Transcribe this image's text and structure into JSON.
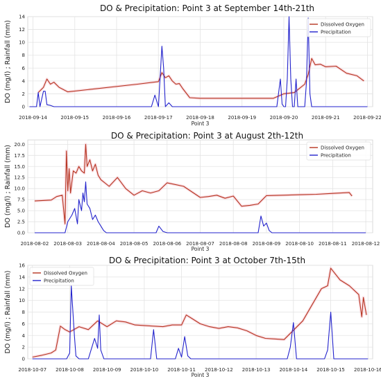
{
  "chart_data": [
    {
      "type": "line",
      "title": "DO & Precipitation: Point 3 at September 14th-21th",
      "xlabel": "Point 3",
      "ylabel": "DO (mg/l) ; Rainfall (mm)",
      "xlim": [
        "2018-09-13 21:00",
        "2018-09-22 03:00"
      ],
      "ylim": [
        0,
        14
      ],
      "yticks": [
        0,
        2,
        4,
        6,
        8,
        10,
        12,
        14
      ],
      "ytick_labels": [
        "0",
        "2",
        "4",
        "6",
        "8",
        "10",
        "12",
        "14"
      ],
      "xticks": [
        "2018-09-14",
        "2018-09-15",
        "2018-09-16",
        "2018-09-17",
        "2018-09-18",
        "2018-09-19",
        "2018-09-20",
        "2018-09-21",
        "2018-09-22"
      ],
      "grid": true,
      "legend_position": "top-right",
      "series": [
        {
          "name": "Dissolved Oxygen",
          "color": "#b5321e",
          "x": [
            "2018-09-14 03:00",
            "2018-09-14 06:00",
            "2018-09-14 08:00",
            "2018-09-14 10:00",
            "2018-09-14 12:00",
            "2018-09-14 15:00",
            "2018-09-14 20:00",
            "2018-09-16 12:00",
            "2018-09-17 00:00",
            "2018-09-17 02:00",
            "2018-09-17 04:00",
            "2018-09-17 06:00",
            "2018-09-17 08:00",
            "2018-09-17 10:00",
            "2018-09-17 12:00",
            "2018-09-17 14:00",
            "2018-09-17 18:00",
            "2018-09-18 00:00",
            "2018-09-19 06:00",
            "2018-09-19 18:00",
            "2018-09-20 00:00",
            "2018-09-20 06:00",
            "2018-09-20 12:00",
            "2018-09-20 14:00",
            "2018-09-20 16:00",
            "2018-09-20 18:00",
            "2018-09-20 21:00",
            "2018-09-21 00:00",
            "2018-09-21 06:00",
            "2018-09-21 12:00",
            "2018-09-21 18:00",
            "2018-09-21 22:00"
          ],
          "values": [
            2.2,
            3.0,
            4.3,
            3.5,
            3.8,
            3.0,
            2.3,
            3.5,
            3.9,
            5.3,
            4.5,
            4.8,
            4.0,
            3.5,
            3.6,
            2.8,
            1.4,
            1.3,
            1.3,
            1.3,
            2.0,
            2.2,
            3.5,
            5.0,
            7.5,
            6.5,
            6.6,
            6.2,
            6.3,
            5.2,
            4.8,
            4.0
          ]
        },
        {
          "name": "Precipitation",
          "color": "#2222cc",
          "x": [
            "2018-09-13 22:00",
            "2018-09-14 02:00",
            "2018-09-14 03:00",
            "2018-09-14 04:00",
            "2018-09-14 06:00",
            "2018-09-14 07:00",
            "2018-09-14 08:00",
            "2018-09-14 10:00",
            "2018-09-14 12:00",
            "2018-09-16 20:00",
            "2018-09-16 22:00",
            "2018-09-17 00:00",
            "2018-09-17 02:00",
            "2018-09-17 03:00",
            "2018-09-17 04:00",
            "2018-09-17 06:00",
            "2018-09-17 08:00",
            "2018-09-19 20:00",
            "2018-09-19 22:00",
            "2018-09-19 23:00",
            "2018-09-20 00:00",
            "2018-09-20 01:00",
            "2018-09-20 02:00",
            "2018-09-20 03:00",
            "2018-09-20 04:00",
            "2018-09-20 05:00",
            "2018-09-20 06:00",
            "2018-09-20 07:00",
            "2018-09-20 08:00",
            "2018-09-20 09:00",
            "2018-09-20 10:00",
            "2018-09-20 11:00",
            "2018-09-20 12:00",
            "2018-09-20 13:00",
            "2018-09-20 14:00",
            "2018-09-20 15:00",
            "2018-09-20 16:00",
            "2018-09-20 17:00",
            "2018-09-20 18:00",
            "2018-09-20 20:00",
            "2018-09-22 00:00"
          ],
          "values": [
            0,
            0,
            2.2,
            0,
            2.4,
            2.4,
            0.3,
            0.2,
            0,
            0,
            1.8,
            0,
            9.4,
            6.0,
            0,
            0.6,
            0,
            0,
            4.3,
            0.4,
            0,
            0,
            4.4,
            14.0,
            4.3,
            0,
            0,
            4.3,
            0,
            0,
            0,
            0,
            0,
            3.8,
            13.8,
            2.0,
            0,
            0,
            0,
            0,
            0
          ]
        }
      ]
    },
    {
      "type": "line",
      "title": "DO & Precipitation: Point 3  at August 2th-12th",
      "xlabel": "Point 3",
      "ylabel": "DO (mg/l) ; Rainfall (mm)",
      "xlim": [
        "2018-08-01 19:00",
        "2018-08-12 05:00"
      ],
      "ylim": [
        0,
        21
      ],
      "yticks": [
        0,
        2.5,
        5,
        7.5,
        10,
        12.5,
        15,
        17.5,
        20
      ],
      "ytick_labels": [
        "0.0",
        "2.5",
        "5.0",
        "7.5",
        "10.0",
        "12.5",
        "15.0",
        "17.5",
        "20.0"
      ],
      "xticks": [
        "2018-08-02",
        "2018-08-03",
        "2018-08-04",
        "2018-08-05",
        "2018-08-06",
        "2018-08-07",
        "2018-08-08",
        "2018-08-09",
        "2018-08-10",
        "2018-08-11",
        "2018-08-12"
      ],
      "grid": true,
      "legend_position": "top-right",
      "series": [
        {
          "name": "Dissolved Oxygen",
          "color": "#b5321e",
          "x": [
            "2018-08-02 00:00",
            "2018-08-02 06:00",
            "2018-08-02 12:00",
            "2018-08-02 16:00",
            "2018-08-02 20:00",
            "2018-08-02 22:00",
            "2018-08-02 23:00",
            "2018-08-03 00:00",
            "2018-08-03 01:00",
            "2018-08-03 02:00",
            "2018-08-03 04:00",
            "2018-08-03 06:00",
            "2018-08-03 08:00",
            "2018-08-03 10:00",
            "2018-08-03 12:00",
            "2018-08-03 13:00",
            "2018-08-03 14:00",
            "2018-08-03 16:00",
            "2018-08-03 18:00",
            "2018-08-03 20:00",
            "2018-08-03 22:00",
            "2018-08-04 00:00",
            "2018-08-04 06:00",
            "2018-08-04 12:00",
            "2018-08-04 18:00",
            "2018-08-05 00:00",
            "2018-08-05 06:00",
            "2018-08-05 12:00",
            "2018-08-05 18:00",
            "2018-08-06 00:00",
            "2018-08-06 12:00",
            "2018-08-07 00:00",
            "2018-08-07 06:00",
            "2018-08-07 12:00",
            "2018-08-07 18:00",
            "2018-08-08 00:00",
            "2018-08-08 06:00",
            "2018-08-08 12:00",
            "2018-08-08 18:00",
            "2018-08-09 00:00",
            "2018-08-09 12:00",
            "2018-08-10 00:00",
            "2018-08-10 12:00",
            "2018-08-11 00:00",
            "2018-08-11 12:00",
            "2018-08-11 14:00"
          ],
          "values": [
            7.2,
            7.3,
            7.4,
            8.2,
            8.5,
            2.0,
            18.5,
            9.5,
            14.5,
            9.0,
            14.0,
            13.5,
            15.0,
            14.0,
            13.5,
            20.0,
            15.0,
            16.5,
            14.0,
            15.5,
            13.0,
            12.0,
            10.5,
            12.5,
            10.0,
            8.5,
            9.5,
            9.0,
            9.5,
            11.3,
            10.5,
            8.0,
            8.2,
            8.5,
            7.8,
            8.3,
            6.0,
            6.2,
            6.5,
            8.4,
            8.5,
            8.6,
            8.7,
            8.9,
            9.1,
            8.3
          ]
        },
        {
          "name": "Precipitation",
          "color": "#2222cc",
          "x": [
            "2018-08-02 00:00",
            "2018-08-02 22:00",
            "2018-08-03 00:00",
            "2018-08-03 03:00",
            "2018-08-03 05:00",
            "2018-08-03 07:00",
            "2018-08-03 08:00",
            "2018-08-03 10:00",
            "2018-08-03 11:00",
            "2018-08-03 12:00",
            "2018-08-03 13:00",
            "2018-08-03 14:00",
            "2018-08-03 16:00",
            "2018-08-03 18:00",
            "2018-08-03 20:00",
            "2018-08-03 22:00",
            "2018-08-04 00:00",
            "2018-08-04 02:00",
            "2018-08-04 04:00",
            "2018-08-05 16:00",
            "2018-08-05 18:00",
            "2018-08-05 21:00",
            "2018-08-06 00:00",
            "2018-08-08 18:00",
            "2018-08-08 20:00",
            "2018-08-08 22:00",
            "2018-08-09 00:00",
            "2018-08-09 02:00",
            "2018-08-09 04:00",
            "2018-08-12 00:00"
          ],
          "values": [
            0,
            0,
            2.5,
            4.0,
            5.5,
            2.0,
            7.5,
            5.0,
            9.0,
            7.0,
            11.5,
            6.5,
            5.5,
            3.0,
            4.0,
            2.5,
            1.5,
            0.5,
            0,
            0,
            1.5,
            0.3,
            0,
            0,
            3.8,
            1.5,
            2.2,
            0.5,
            0,
            0
          ]
        }
      ]
    },
    {
      "type": "line",
      "title": "DO & Precipitation: Point 3  at October 7th-15th",
      "xlabel": "Point 3",
      "ylabel": "DO (mg/l) ; Rainfall (mm)",
      "xlim": [
        "2018-10-06 21:00",
        "2018-10-16 03:00"
      ],
      "ylim": [
        0,
        16
      ],
      "yticks": [
        0,
        2,
        4,
        6,
        8,
        10,
        12,
        14,
        16
      ],
      "ytick_labels": [
        "0",
        "2",
        "4",
        "6",
        "8",
        "10",
        "12",
        "14",
        "16"
      ],
      "xticks": [
        "2018-10-07",
        "2018-10-08",
        "2018-10-09",
        "2018-10-10",
        "2018-10-11",
        "2018-10-12",
        "2018-10-13",
        "2018-10-14",
        "2018-10-15",
        "2018-10-16"
      ],
      "grid": true,
      "legend_position": "top-left",
      "series": [
        {
          "name": "Dissolved Oxygen",
          "color": "#b5321e",
          "x": [
            "2018-10-07 00:00",
            "2018-10-07 06:00",
            "2018-10-07 12:00",
            "2018-10-07 15:00",
            "2018-10-07 18:00",
            "2018-10-07 21:00",
            "2018-10-08 00:00",
            "2018-10-08 06:00",
            "2018-10-08 12:00",
            "2018-10-08 18:00",
            "2018-10-09 00:00",
            "2018-10-09 06:00",
            "2018-10-09 12:00",
            "2018-10-09 18:00",
            "2018-10-10 00:00",
            "2018-10-10 06:00",
            "2018-10-10 12:00",
            "2018-10-10 18:00",
            "2018-10-11 00:00",
            "2018-10-11 03:00",
            "2018-10-11 06:00",
            "2018-10-11 12:00",
            "2018-10-11 18:00",
            "2018-10-12 00:00",
            "2018-10-12 06:00",
            "2018-10-12 12:00",
            "2018-10-12 18:00",
            "2018-10-13 00:00",
            "2018-10-13 06:00",
            "2018-10-13 12:00",
            "2018-10-13 18:00",
            "2018-10-14 06:00",
            "2018-10-14 18:00",
            "2018-10-14 22:00",
            "2018-10-15 00:00",
            "2018-10-15 06:00",
            "2018-10-15 12:00",
            "2018-10-15 18:00",
            "2018-10-15 20:00",
            "2018-10-15 21:00",
            "2018-10-15 23:00"
          ],
          "values": [
            0.3,
            0.6,
            1.0,
            1.5,
            5.6,
            5.0,
            4.6,
            5.5,
            5.0,
            6.5,
            5.5,
            6.5,
            6.3,
            5.8,
            5.7,
            5.6,
            5.5,
            5.8,
            5.8,
            7.5,
            7.0,
            6.0,
            5.5,
            5.2,
            5.5,
            5.3,
            4.8,
            4.0,
            3.5,
            3.4,
            3.3,
            6.5,
            12.0,
            12.5,
            15.5,
            13.5,
            12.5,
            11.0,
            7.2,
            10.5,
            7.5
          ]
        },
        {
          "name": "Precipitation",
          "color": "#2222cc",
          "x": [
            "2018-10-07 00:00",
            "2018-10-07 22:00",
            "2018-10-08 00:00",
            "2018-10-08 01:00",
            "2018-10-08 03:00",
            "2018-10-08 04:00",
            "2018-10-08 06:00",
            "2018-10-08 12:00",
            "2018-10-08 16:00",
            "2018-10-08 18:00",
            "2018-10-08 19:00",
            "2018-10-08 20:00",
            "2018-10-08 22:00",
            "2018-10-10 00:00",
            "2018-10-10 04:00",
            "2018-10-10 06:00",
            "2018-10-10 08:00",
            "2018-10-10 20:00",
            "2018-10-10 22:00",
            "2018-10-11 00:00",
            "2018-10-11 02:00",
            "2018-10-11 04:00",
            "2018-10-11 06:00",
            "2018-10-13 20:00",
            "2018-10-13 22:00",
            "2018-10-14 00:00",
            "2018-10-14 02:00",
            "2018-10-14 20:00",
            "2018-10-14 22:00",
            "2018-10-15 00:00",
            "2018-10-15 02:00",
            "2018-10-16 00:00"
          ],
          "values": [
            0,
            0,
            1.0,
            12.5,
            4.0,
            0.5,
            0,
            0,
            3.5,
            1.8,
            7.5,
            1.5,
            0,
            0,
            0,
            5.0,
            0,
            0,
            1.8,
            0.3,
            3.8,
            0.5,
            0,
            0,
            2.0,
            6.2,
            0,
            0,
            1.5,
            8.0,
            0,
            0
          ]
        }
      ]
    }
  ]
}
